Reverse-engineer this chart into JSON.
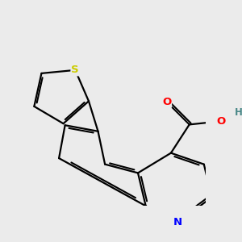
{
  "background_color": "#ebebeb",
  "bond_color": "#000000",
  "atom_colors": {
    "N": "#0000ff",
    "O": "#ff0000",
    "H": "#4a8888",
    "S": "#cccc00"
  },
  "figsize": [
    3.0,
    3.0
  ],
  "dpi": 100,
  "xlim": [
    -2.8,
    3.2
  ],
  "ylim": [
    -2.5,
    2.8
  ]
}
